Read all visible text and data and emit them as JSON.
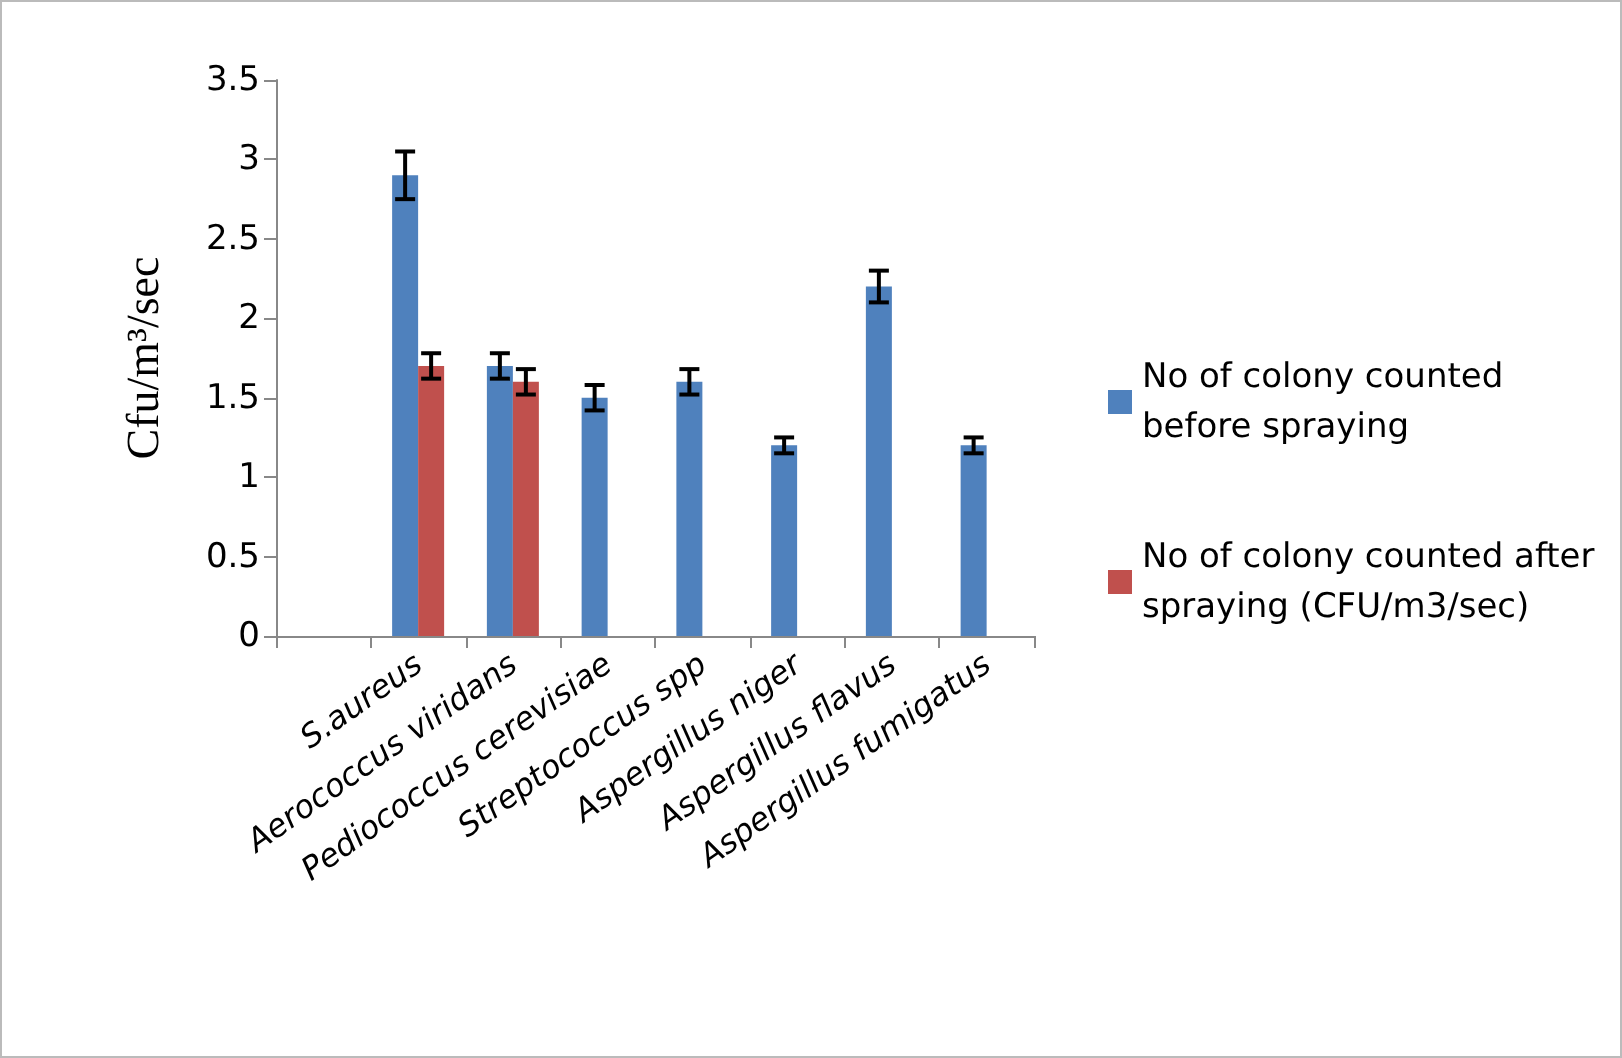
{
  "chart_data": {
    "type": "bar",
    "ylabel": "Cfu/m³/sec",
    "categories": [
      null,
      "S.aureus",
      "Aerococcus viridans",
      "Pediococcus cerevisiae",
      "Streptococcus spp",
      "Aspergillus niger",
      "Aspergillus flavus",
      "Aspergillus fumigatus"
    ],
    "series": [
      {
        "name": "No of colony counted before spraying",
        "color": "#4f81bd",
        "values": [
          null,
          2.9,
          1.7,
          1.5,
          1.6,
          1.2,
          2.2,
          1.2
        ],
        "errors": [
          null,
          0.15,
          0.08,
          0.08,
          0.08,
          0.05,
          0.1,
          0.05
        ]
      },
      {
        "name": "No of colony counted after spraying (CFU/m3/sec)",
        "color": "#c0504d",
        "values": [
          null,
          1.7,
          1.6,
          null,
          null,
          null,
          null,
          null
        ],
        "errors": [
          null,
          0.08,
          0.08,
          null,
          null,
          null,
          null,
          null
        ]
      }
    ],
    "ylim": [
      0,
      3.5
    ],
    "yticks": [
      0,
      0.5,
      1,
      1.5,
      2,
      2.5,
      3,
      3.5
    ],
    "grid": false,
    "legend": "right"
  }
}
